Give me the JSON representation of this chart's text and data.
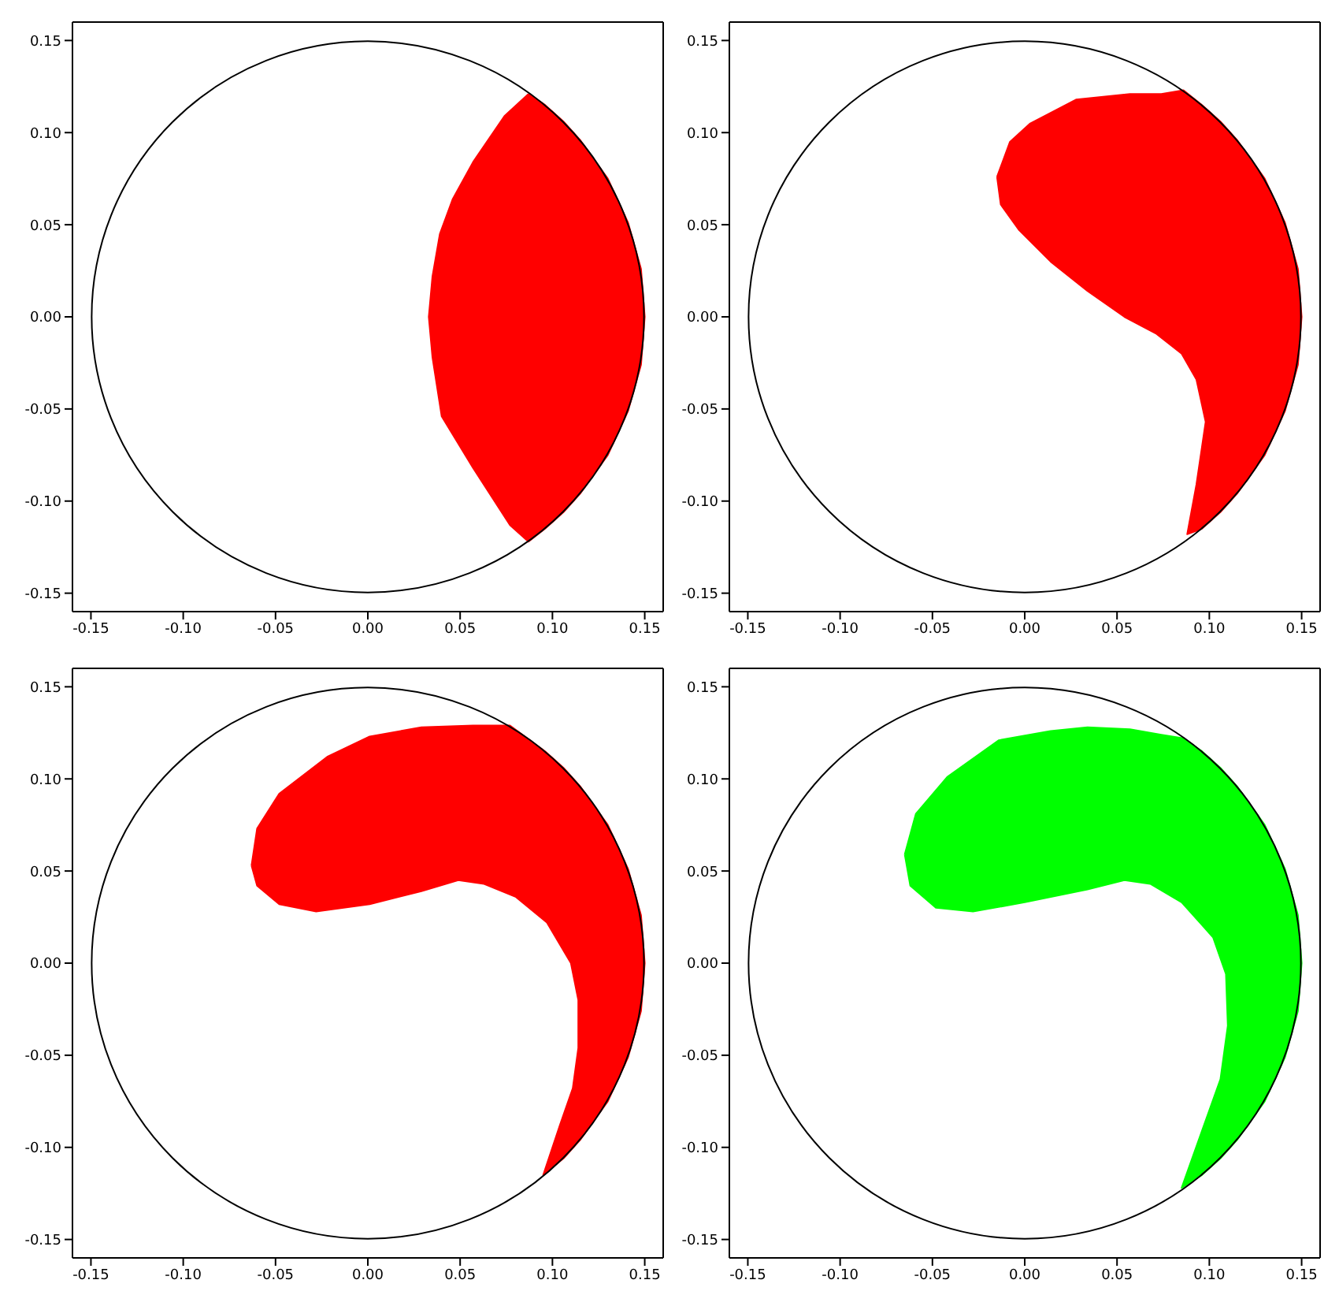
{
  "chart_data": [
    {
      "type": "area",
      "marker": "none",
      "xlim": [
        -0.16,
        0.16
      ],
      "ylim": [
        -0.16,
        0.16
      ],
      "xticks": [
        {
          "value": -0.15,
          "label": "-0.15"
        },
        {
          "value": -0.1,
          "label": "-0.10"
        },
        {
          "value": -0.05,
          "label": "-0.05"
        },
        {
          "value": 0,
          "label": "0.00"
        },
        {
          "value": 0.05,
          "label": "0.05"
        },
        {
          "value": 0.1,
          "label": "0.10"
        },
        {
          "value": 0.15,
          "label": "0.15"
        }
      ],
      "yticks": [
        {
          "value": -0.15,
          "label": "-0.15"
        },
        {
          "value": -0.1,
          "label": "-0.10"
        },
        {
          "value": -0.05,
          "label": "-0.05"
        },
        {
          "value": 0,
          "label": "0.00"
        },
        {
          "value": 0.05,
          "label": "0.05"
        },
        {
          "value": 0.1,
          "label": "0.10"
        },
        {
          "value": 0.15,
          "label": "0.15"
        }
      ],
      "series": [
        {
          "color": "#ff0000",
          "x": [
            0.087,
            0.096,
            0.106,
            0.115,
            0.13,
            0.141,
            0.148,
            0.15,
            0.148,
            0.141,
            0.13,
            0.115,
            0.106,
            0.096,
            0.087,
            0.077,
            0.057,
            0.04,
            0.035,
            0.033,
            0.035,
            0.039,
            0.046,
            0.057,
            0.074,
            0.087
          ],
          "values": [
            0.121,
            0.115,
            0.106,
            0.096,
            0.075,
            0.051,
            0.026,
            0,
            -0.026,
            -0.051,
            -0.075,
            -0.096,
            -0.106,
            -0.115,
            -0.122,
            -0.113,
            -0.082,
            -0.054,
            -0.022,
            0,
            0.022,
            0.045,
            0.064,
            0.084,
            0.109,
            0.121
          ]
        }
      ]
    },
    {
      "type": "area",
      "marker": "none",
      "xlim": [
        -0.16,
        0.16
      ],
      "ylim": [
        -0.16,
        0.16
      ],
      "xticks": [
        {
          "value": -0.15,
          "label": "-0.15"
        },
        {
          "value": -0.1,
          "label": "-0.10"
        },
        {
          "value": -0.05,
          "label": "-0.05"
        },
        {
          "value": 0,
          "label": "0.00"
        },
        {
          "value": 0.05,
          "label": "0.05"
        },
        {
          "value": 0.1,
          "label": "0.10"
        },
        {
          "value": 0.15,
          "label": "0.15"
        }
      ],
      "yticks": [
        {
          "value": -0.15,
          "label": "-0.15"
        },
        {
          "value": -0.1,
          "label": "-0.10"
        },
        {
          "value": -0.05,
          "label": "-0.05"
        },
        {
          "value": 0,
          "label": "0.00"
        },
        {
          "value": 0.05,
          "label": "0.05"
        },
        {
          "value": 0.1,
          "label": "0.10"
        },
        {
          "value": 0.15,
          "label": "0.15"
        }
      ],
      "series": [
        {
          "color": "#ff0000",
          "x": [
            -0.015,
            -0.008,
            0.003,
            0.028,
            0.057,
            0.074,
            0.086,
            0.096,
            0.106,
            0.115,
            0.13,
            0.141,
            0.148,
            0.15,
            0.148,
            0.141,
            0.13,
            0.115,
            0.106,
            0.096,
            0.088,
            0.093,
            0.098,
            0.093,
            0.085,
            0.071,
            0.054,
            0.034,
            0.014,
            -0.003,
            -0.013,
            -0.015
          ],
          "values": [
            0.076,
            0.095,
            0.105,
            0.118,
            0.121,
            0.121,
            0.123,
            0.115,
            0.106,
            0.096,
            0.075,
            0.051,
            0.026,
            0,
            -0.026,
            -0.051,
            -0.075,
            -0.096,
            -0.106,
            -0.115,
            -0.118,
            -0.091,
            -0.057,
            -0.034,
            -0.02,
            -0.009,
            0,
            0.014,
            0.03,
            0.047,
            0.061,
            0.076
          ]
        }
      ]
    },
    {
      "type": "area",
      "marker": "none",
      "xlim": [
        -0.16,
        0.16
      ],
      "ylim": [
        -0.16,
        0.16
      ],
      "xticks": [
        {
          "value": -0.15,
          "label": "-0.15"
        },
        {
          "value": -0.1,
          "label": "-0.10"
        },
        {
          "value": -0.05,
          "label": "-0.05"
        },
        {
          "value": 0,
          "label": "0.00"
        },
        {
          "value": 0.05,
          "label": "0.05"
        },
        {
          "value": 0.1,
          "label": "0.10"
        },
        {
          "value": 0.15,
          "label": "0.15"
        }
      ],
      "yticks": [
        {
          "value": -0.15,
          "label": "-0.15"
        },
        {
          "value": -0.1,
          "label": "-0.10"
        },
        {
          "value": -0.05,
          "label": "-0.05"
        },
        {
          "value": 0,
          "label": "0.00"
        },
        {
          "value": 0.05,
          "label": "0.05"
        },
        {
          "value": 0.1,
          "label": "0.10"
        },
        {
          "value": 0.15,
          "label": "0.15"
        }
      ],
      "series": [
        {
          "color": "#ff0000",
          "x": [
            -0.063,
            -0.06,
            -0.048,
            -0.022,
            0.001,
            0.029,
            0.057,
            0.077,
            0.096,
            0.106,
            0.115,
            0.13,
            0.141,
            0.148,
            0.15,
            0.148,
            0.141,
            0.13,
            0.115,
            0.106,
            0.095,
            0.104,
            0.111,
            0.114,
            0.114,
            0.11,
            0.097,
            0.08,
            0.063,
            0.049,
            0.029,
            0.001,
            -0.028,
            -0.048,
            -0.06,
            -0.063
          ],
          "values": [
            0.053,
            0.073,
            0.092,
            0.112,
            0.123,
            0.128,
            0.129,
            0.129,
            0.115,
            0.106,
            0.096,
            0.075,
            0.051,
            0.026,
            0,
            -0.026,
            -0.051,
            -0.075,
            -0.096,
            -0.106,
            -0.115,
            -0.088,
            -0.068,
            -0.046,
            -0.02,
            0,
            0.022,
            0.036,
            0.043,
            0.045,
            0.039,
            0.032,
            0.028,
            0.032,
            0.042,
            0.053
          ]
        }
      ]
    },
    {
      "type": "area",
      "marker": "none",
      "xlim": [
        -0.16,
        0.16
      ],
      "ylim": [
        -0.16,
        0.16
      ],
      "xticks": [
        {
          "value": -0.15,
          "label": "-0.15"
        },
        {
          "value": -0.1,
          "label": "-0.10"
        },
        {
          "value": -0.05,
          "label": "-0.05"
        },
        {
          "value": 0,
          "label": "0.00"
        },
        {
          "value": 0.05,
          "label": "0.05"
        },
        {
          "value": 0.1,
          "label": "0.10"
        },
        {
          "value": 0.15,
          "label": "0.15"
        }
      ],
      "yticks": [
        {
          "value": -0.15,
          "label": "-0.15"
        },
        {
          "value": -0.1,
          "label": "-0.10"
        },
        {
          "value": -0.05,
          "label": "-0.05"
        },
        {
          "value": 0,
          "label": "0.00"
        },
        {
          "value": 0.05,
          "label": "0.05"
        },
        {
          "value": 0.1,
          "label": "0.10"
        },
        {
          "value": 0.15,
          "label": "0.15"
        }
      ],
      "series": [
        {
          "color": "#00ff00",
          "x": [
            -0.065,
            -0.059,
            -0.042,
            -0.014,
            0.014,
            0.034,
            0.057,
            0.074,
            0.086,
            0.096,
            0.106,
            0.115,
            0.13,
            0.141,
            0.148,
            0.15,
            0.148,
            0.141,
            0.13,
            0.115,
            0.106,
            0.096,
            0.085,
            0.096,
            0.106,
            0.11,
            0.109,
            0.102,
            0.085,
            0.068,
            0.054,
            0.034,
            0,
            -0.028,
            -0.048,
            -0.062,
            -0.065
          ],
          "values": [
            0.059,
            0.081,
            0.101,
            0.121,
            0.126,
            0.128,
            0.127,
            0.124,
            0.122,
            0.115,
            0.106,
            0.096,
            0.075,
            0.051,
            0.026,
            0,
            -0.026,
            -0.051,
            -0.075,
            -0.096,
            -0.106,
            -0.115,
            -0.122,
            -0.091,
            -0.063,
            -0.034,
            -0.006,
            0.014,
            0.033,
            0.043,
            0.045,
            0.04,
            0.033,
            0.028,
            0.03,
            0.042,
            0.059
          ]
        }
      ]
    }
  ]
}
